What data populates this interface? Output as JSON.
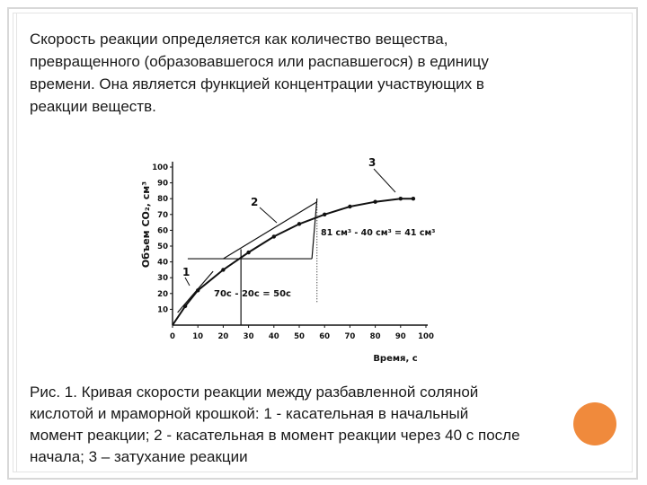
{
  "intro_lines": [
    "Скорость реакции определяется как количество вещества,",
    "превращенного (образовавшегося или распавшегося) в единицу",
    "времени. Она является функцией концентрации участвующих в",
    "реакции веществ."
  ],
  "caption_lines": [
    "Рис. 1. Кривая скорости реакции между разбавленной соляной",
    "кислотой и мраморной крошкой: 1 - касательная в начальный",
    "момент реакции; 2 - касательная в момент реакции через 40 с после",
    "начала; 3 – затухание реакции"
  ],
  "colors": {
    "accent_circle": "#f08a3c",
    "frame": "#d8d8d8",
    "ink": "#111111"
  },
  "chart_data": {
    "type": "line",
    "xlabel": "Время, с",
    "ylabel": "Объем CO₂, см³",
    "x_ticks": [
      "0",
      "10",
      "20",
      "30",
      "40",
      "50",
      "60",
      "70",
      "80",
      "90",
      "100"
    ],
    "y_ticks": [
      "10",
      "20",
      "30",
      "40",
      "50",
      "60",
      "70",
      "80",
      "90",
      "100"
    ],
    "xlim": [
      0,
      100
    ],
    "ylim": [
      0,
      100
    ],
    "series": [
      {
        "x": [
          0,
          5,
          10,
          20,
          30,
          40,
          50,
          60,
          70,
          80,
          90,
          95
        ],
        "y": [
          0,
          12,
          22,
          35,
          46,
          56,
          64,
          70,
          75,
          78,
          80,
          80
        ]
      }
    ],
    "tangents": [
      {
        "label": "1",
        "x": [
          2,
          16
        ],
        "y": [
          8,
          34
        ]
      },
      {
        "label": "2",
        "x": [
          20,
          57
        ],
        "y": [
          42,
          78
        ]
      }
    ],
    "annotations": {
      "curve_labels": [
        "1",
        "2",
        "3"
      ],
      "horizontal_measure": "70с - 20с = 50с",
      "vertical_measure": "81 см³ - 40 см³ = 41 см³"
    }
  }
}
